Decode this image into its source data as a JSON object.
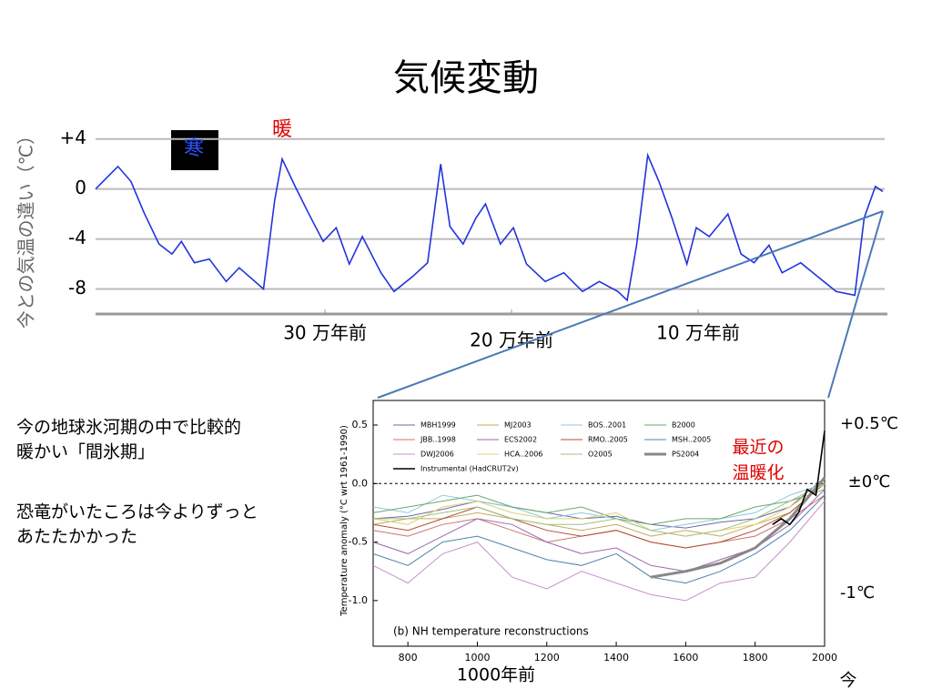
{
  "title": "気候変動",
  "notes": [
    "今の地球氷河期の中で比較的",
    "暖かい「間氷期」",
    "恐竜がいたころは今よりずっと",
    "あたたかかった"
  ],
  "chart_data": [
    {
      "type": "line",
      "ylabel": "今との気温の違い（℃）",
      "color": "#2233dd",
      "annotations": [
        "暖",
        "寒"
      ],
      "xlim": [
        -423,
        0
      ],
      "ylim": [
        -10,
        5
      ],
      "xticks": [
        {
          "value": -300,
          "label": "30 万年前"
        },
        {
          "value": -200,
          "label": "20 万年前"
        },
        {
          "value": -100,
          "label": "10 万年前"
        }
      ],
      "yticks": [
        {
          "value": 4,
          "label": "+4"
        },
        0,
        -4,
        -8
      ],
      "grid": true,
      "x": [
        -423,
        -411,
        -404,
        -397,
        -389,
        -382,
        -377,
        -370,
        -362,
        -353,
        -346,
        -333,
        -327,
        -323,
        -316,
        -309,
        -301,
        -294,
        -287,
        -280,
        -270,
        -263,
        -253,
        -245,
        -238,
        -233,
        -226,
        -219,
        -214,
        -206,
        -199,
        -192,
        -182,
        -172,
        -162,
        -153,
        -143,
        -138,
        -133,
        -127,
        -121,
        -114,
        -106,
        -101,
        -94,
        -84,
        -77,
        -70,
        -62,
        -55,
        -45,
        -36,
        -26,
        -16,
        -11,
        -5,
        -1
      ],
      "values": [
        0,
        1.8,
        0.6,
        -1.9,
        -4.4,
        -5.2,
        -4.2,
        -5.9,
        -5.6,
        -7.4,
        -6.3,
        -8,
        -0.9,
        2.4,
        0.2,
        -1.9,
        -4.2,
        -3.1,
        -6,
        -3.8,
        -6.7,
        -8.2,
        -7,
        -5.9,
        2,
        -3,
        -4.4,
        -2.3,
        -1.2,
        -4.4,
        -3.1,
        -6,
        -7.4,
        -6.7,
        -8.2,
        -7.4,
        -8.2,
        -8.9,
        -4.5,
        2.7,
        0.6,
        -2.3,
        -6,
        -3.1,
        -3.8,
        -2,
        -5.2,
        -5.9,
        -4.5,
        -6.7,
        -5.9,
        -7,
        -8.2,
        -8.5,
        -2.3,
        0.2,
        -0.2
      ]
    },
    {
      "type": "line",
      "title": "(b) NH temperature reconstructions",
      "ylabel": "Temperature anomaly (°C wrt 1961-1990)",
      "annotations": [
        "+0.5℃",
        "±0℃",
        "-1℃",
        "最近の",
        "温暖化",
        "1000年前",
        "今"
      ],
      "xlim": [
        700,
        2000
      ],
      "ylim": [
        -1.39,
        0.71
      ],
      "xticks": [
        800,
        1000,
        1200,
        1400,
        1600,
        1800,
        2000
      ],
      "yticks": [
        0.5,
        {
          "value": 0,
          "label": "0.0"
        },
        -0.5,
        {
          "value": -1,
          "label": "-1.0"
        }
      ],
      "x": [
        700,
        800,
        900,
        1000,
        1100,
        1200,
        1300,
        1400,
        1500,
        1600,
        1700,
        1800,
        1900,
        2000
      ],
      "series": [
        {
          "name": "MBH1999",
          "color": "#6a6aa8",
          "values": [
            -0.3,
            -0.28,
            -0.22,
            -0.15,
            -0.2,
            -0.25,
            -0.3,
            -0.28,
            -0.35,
            -0.38,
            -0.33,
            -0.3,
            -0.2,
            0.05
          ]
        },
        {
          "name": "MJ2003",
          "color": "#c8a85a",
          "values": [
            -0.35,
            -0.3,
            -0.3,
            -0.25,
            -0.3,
            -0.35,
            -0.4,
            -0.35,
            -0.45,
            -0.4,
            -0.45,
            -0.35,
            -0.25,
            0
          ]
        },
        {
          "name": "BOS..2001",
          "color": "#8fc8e0",
          "values": [
            -0.2,
            -0.25,
            -0.1,
            -0.15,
            -0.2,
            -0.3,
            -0.25,
            -0.3,
            -0.4,
            -0.35,
            -0.3,
            -0.25,
            -0.1,
            0
          ]
        },
        {
          "name": "B2000",
          "color": "#6aa86a",
          "values": [
            -0.25,
            -0.2,
            -0.15,
            -0.1,
            -0.2,
            -0.25,
            -0.2,
            -0.3,
            -0.35,
            -0.3,
            -0.3,
            -0.2,
            -0.15,
            -0.05
          ]
        },
        {
          "name": "JBB..1998",
          "color": "#d07070",
          "values": [
            -0.4,
            -0.45,
            -0.35,
            -0.3,
            -0.4,
            -0.5,
            -0.45,
            -0.4,
            -0.5,
            -0.55,
            -0.5,
            -0.45,
            -0.3,
            -0.1
          ]
        },
        {
          "name": "ECS2002",
          "color": "#9a6ab0",
          "values": [
            -0.5,
            -0.6,
            -0.45,
            -0.3,
            -0.35,
            -0.5,
            -0.6,
            -0.55,
            -0.7,
            -0.75,
            -0.65,
            -0.55,
            -0.35,
            -0.05
          ]
        },
        {
          "name": "RMO..2005",
          "color": "#b05030",
          "values": [
            -0.35,
            -0.4,
            -0.3,
            -0.2,
            -0.3,
            -0.4,
            -0.45,
            -0.4,
            -0.5,
            -0.55,
            -0.5,
            -0.4,
            -0.25,
            0
          ]
        },
        {
          "name": "MSH..2005",
          "color": "#5080b0",
          "values": [
            -0.6,
            -0.7,
            -0.5,
            -0.45,
            -0.55,
            -0.65,
            -0.7,
            -0.6,
            -0.8,
            -0.85,
            -0.75,
            -0.6,
            -0.4,
            -0.1
          ]
        },
        {
          "name": "DWJ2006",
          "color": "#c890c8",
          "values": [
            -0.7,
            -0.85,
            -0.6,
            -0.5,
            -0.8,
            -0.9,
            -0.75,
            -0.85,
            -0.95,
            -1,
            -0.85,
            -0.8,
            -0.5,
            -0.15
          ]
        },
        {
          "name": "HCA..2006",
          "color": "#e0d070",
          "values": [
            -0.3,
            -0.35,
            -0.2,
            -0.15,
            -0.25,
            -0.3,
            -0.3,
            -0.25,
            -0.4,
            -0.45,
            -0.4,
            -0.35,
            -0.2,
            0
          ]
        },
        {
          "name": "O2005",
          "color": "#a0c080",
          "values": [
            -0.3,
            -0.3,
            -0.25,
            -0.2,
            -0.3,
            -0.35,
            -0.35,
            -0.3,
            -0.4,
            -0.45,
            -0.4,
            -0.3,
            -0.15,
            0
          ]
        },
        {
          "name": "PS2004",
          "color": "#888888",
          "x": [
            1500,
            1600,
            1700,
            1800,
            1900,
            2000
          ],
          "values": [
            -0.8,
            -0.75,
            -0.68,
            -0.55,
            -0.3,
            0.05
          ]
        },
        {
          "name": "Instrumental (HadCRUT2v)",
          "color": "#000000",
          "x": [
            1850,
            1875,
            1900,
            1925,
            1950,
            1975,
            2000
          ],
          "values": [
            -0.35,
            -0.3,
            -0.35,
            -0.25,
            -0.05,
            -0.1,
            0.45
          ]
        }
      ]
    }
  ]
}
